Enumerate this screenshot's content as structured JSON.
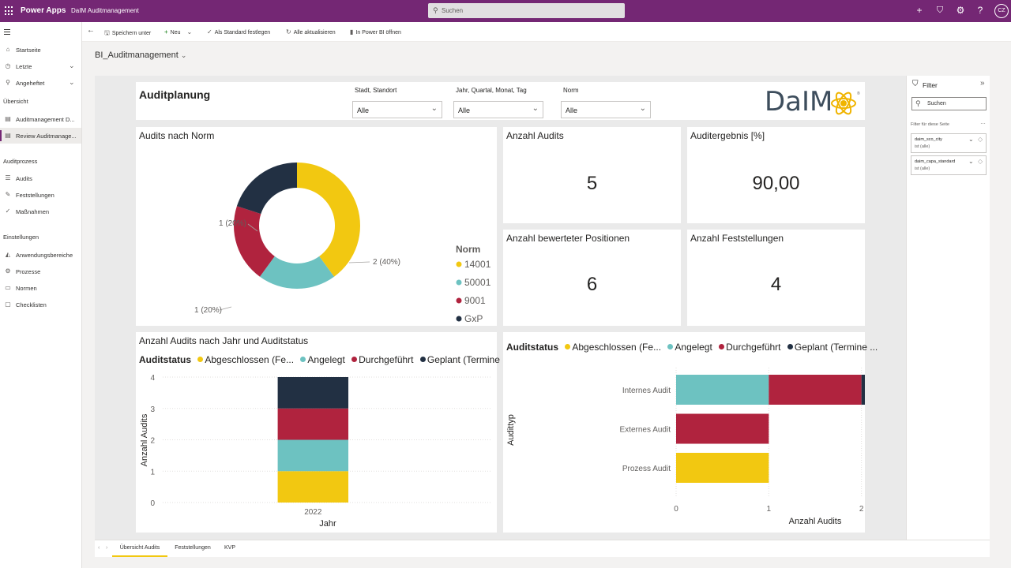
{
  "topbar": {
    "brand": "Power Apps",
    "app_name": "DaIM Auditmanagement",
    "search_placeholder": "Suchen",
    "avatar_initials": "CZ"
  },
  "leftnav": {
    "items_top": [
      {
        "label": "Startseite",
        "icon": "home-icon"
      },
      {
        "label": "Letzte",
        "icon": "clock-icon"
      },
      {
        "label": "Angeheftet",
        "icon": "pin-icon"
      }
    ],
    "section_overview": "Übersicht",
    "overview_items": [
      {
        "label": "Auditmanagement D...",
        "icon": "chart-icon"
      },
      {
        "label": "Review Auditmanage...",
        "icon": "chart-icon"
      }
    ],
    "section_audit": "Auditprozess",
    "audit_items": [
      {
        "label": "Audits",
        "icon": "list-icon"
      },
      {
        "label": "Feststellungen",
        "icon": "wrench-icon"
      },
      {
        "label": "Maßnahmen",
        "icon": "tasks-icon"
      }
    ],
    "section_settings": "Einstellungen",
    "settings_items": [
      {
        "label": "Anwendungsbereiche",
        "icon": "area-icon"
      },
      {
        "label": "Prozesse",
        "icon": "gear-icon"
      },
      {
        "label": "Normen",
        "icon": "book-icon"
      },
      {
        "label": "Checklisten",
        "icon": "checklist-icon"
      }
    ]
  },
  "commandbar": {
    "save_as": "Speichern unter",
    "new": "Neu",
    "set_default": "Als Standard festlegen",
    "refresh_all": "Alle aktualisieren",
    "open_powerbi": "In Power BI öffnen"
  },
  "report": {
    "title": "BI_Auditmanagement",
    "header": {
      "title": "Auditplanung",
      "logo_text": "DaIM",
      "slicers": [
        {
          "label": "Stadt, Standort",
          "value": "Alle"
        },
        {
          "label": "Jahr, Quartal, Monat, Tag",
          "value": "Alle"
        },
        {
          "label": "Norm",
          "value": "Alle"
        }
      ]
    },
    "donut_title": "Audits nach Norm",
    "legend_norm_title": "Norm",
    "kpis": [
      {
        "title": "Anzahl Audits",
        "value": "5"
      },
      {
        "title": "Auditergebnis [%]",
        "value": "90,00"
      },
      {
        "title": "Anzahl bewerteter Positionen",
        "value": "6"
      },
      {
        "title": "Anzahl Feststellungen",
        "value": "4"
      }
    ],
    "column_title": "Anzahl Audits nach Jahr und Auditstatus",
    "status_legend_title": "Auditstatus",
    "status_legend": [
      "Abgeschlossen (Fe...",
      "Angelegt",
      "Durchgeführt",
      "Geplant (Termine ..."
    ]
  },
  "colors": {
    "yellow": "#F2C811",
    "teal": "#6DC2C1",
    "red": "#B0233E",
    "navy": "#223043",
    "accent": "#742774"
  },
  "chart_data": [
    {
      "type": "pie",
      "title": "Audits nach Norm",
      "legend_title": "Norm",
      "categories": [
        "14001",
        "50001",
        "9001",
        "GxP"
      ],
      "values": [
        2,
        1,
        1,
        1
      ],
      "labels": [
        "2 (40%)",
        "1 (20%)",
        "1 (20%)",
        "1 (20%)"
      ]
    },
    {
      "type": "bar",
      "orientation": "vertical-stacked",
      "title": "Anzahl Audits nach Jahr und Auditstatus",
      "xlabel": "Jahr",
      "ylabel": "Anzahl Audits",
      "categories": [
        "2022"
      ],
      "ylim": [
        0,
        4
      ],
      "yticks": [
        0,
        1,
        2,
        3,
        4
      ],
      "series": [
        {
          "name": "Abgeschlossen (Fe...",
          "values": [
            1
          ]
        },
        {
          "name": "Angelegt",
          "values": [
            1
          ]
        },
        {
          "name": "Durchgeführt",
          "values": [
            1
          ]
        },
        {
          "name": "Geplant (Termine ...",
          "values": [
            1
          ]
        }
      ]
    },
    {
      "type": "bar",
      "orientation": "horizontal-stacked",
      "xlabel": "Anzahl Audits",
      "ylabel": "Audittyp",
      "categories": [
        "Internes Audit",
        "Externes Audit",
        "Prozess Audit"
      ],
      "xlim": [
        0,
        3
      ],
      "xticks": [
        0,
        1,
        2,
        3
      ],
      "series": [
        {
          "name": "Abgeschlossen (Fe...",
          "values": [
            0,
            0,
            1
          ]
        },
        {
          "name": "Angelegt",
          "values": [
            1,
            0,
            0
          ]
        },
        {
          "name": "Durchgeführt",
          "values": [
            1,
            1,
            0
          ]
        },
        {
          "name": "Geplant (Termine ...",
          "values": [
            1,
            0,
            0
          ]
        }
      ]
    }
  ],
  "filters": {
    "title": "Filter",
    "search_placeholder": "Suchen",
    "section": "Filter für diese Seite",
    "cards": [
      {
        "field": "daim_sco_city",
        "value": "ist (alle)"
      },
      {
        "field": "daim_capa_standard",
        "value": "ist (alle)"
      }
    ]
  },
  "tabs": [
    "Übersicht Audits",
    "Feststellungen",
    "KVP"
  ]
}
